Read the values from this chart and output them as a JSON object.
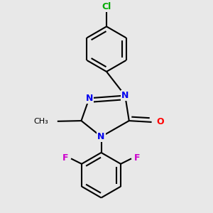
{
  "background_color": "#e8e8e8",
  "bond_color": "#000000",
  "bond_width": 1.5,
  "atom_colors": {
    "N": "#0000ee",
    "O": "#ff0000",
    "F": "#cc00cc",
    "Cl": "#00aa00",
    "C": "#000000"
  },
  "font_size": 9
}
